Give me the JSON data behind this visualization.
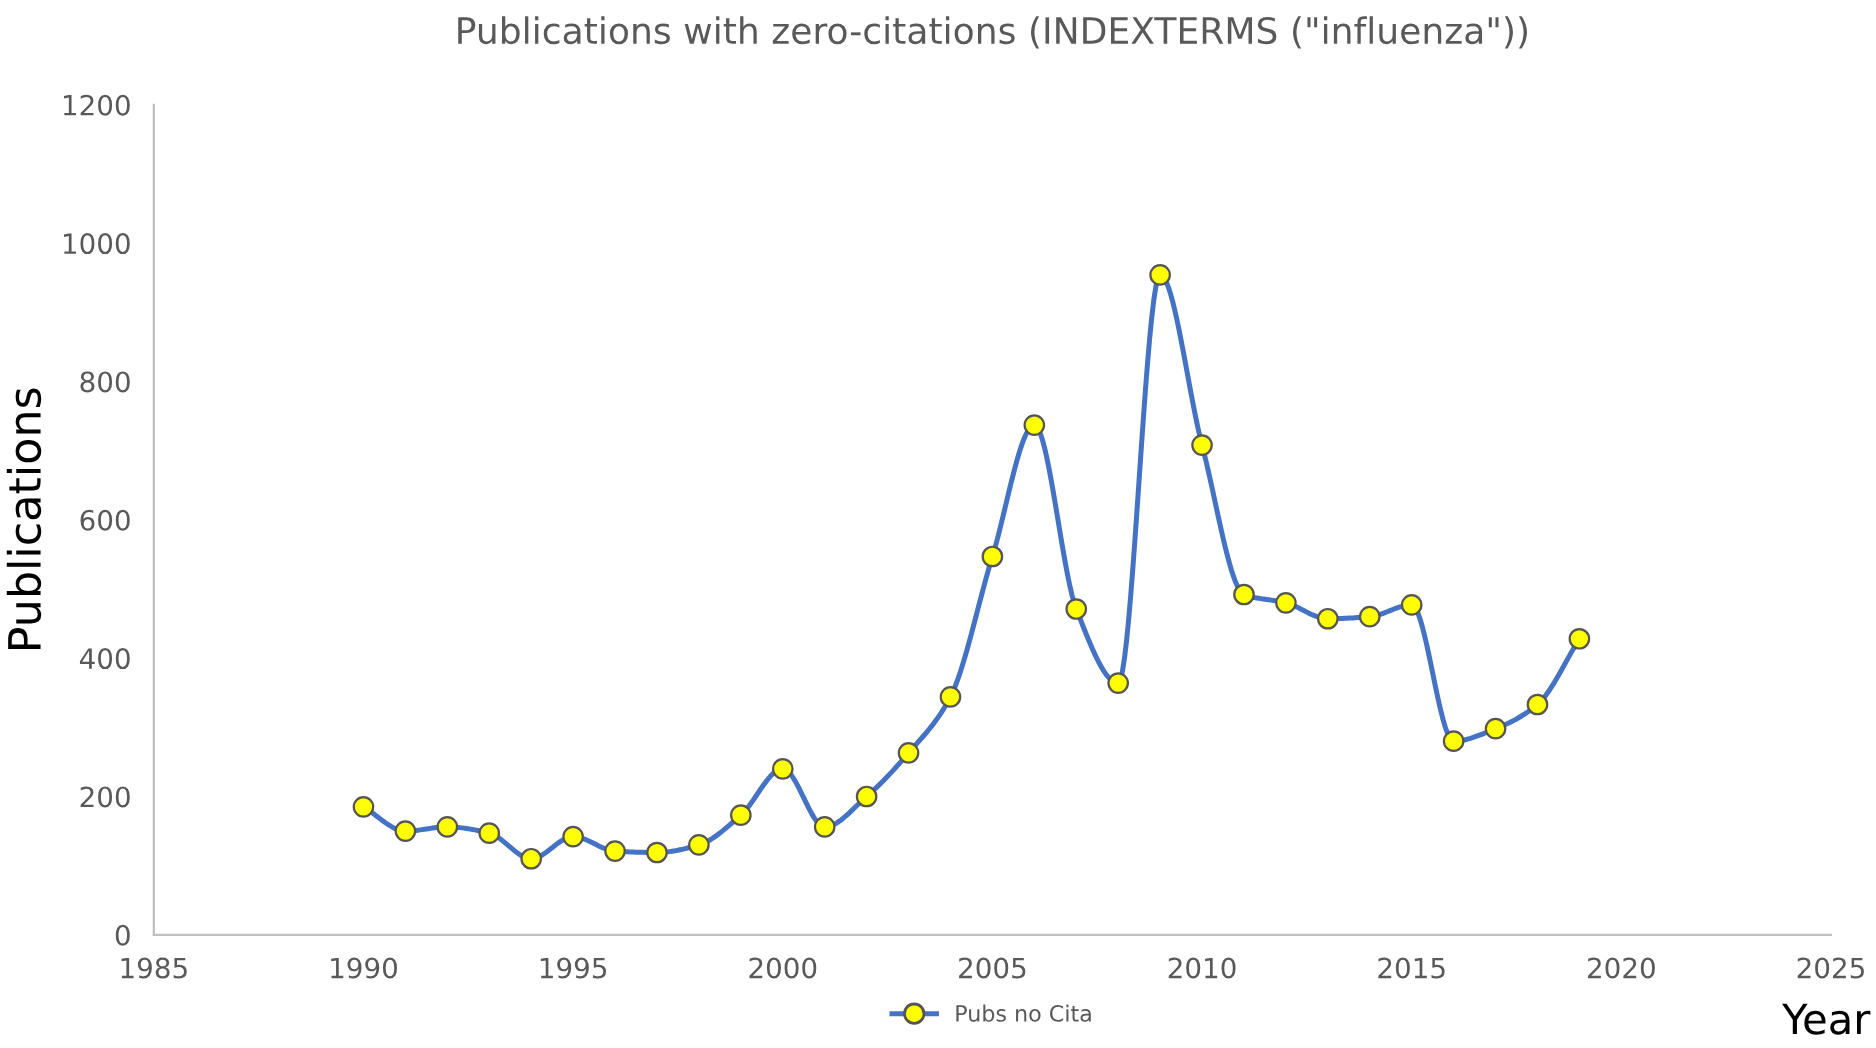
{
  "chart_data": {
    "type": "line",
    "title": "Publications with zero-citations (INDEXTERMS (\"influenza\"))",
    "xlabel": "Year",
    "ylabel": "Publications",
    "x": [
      1990,
      1991,
      1992,
      1993,
      1994,
      1995,
      1996,
      1997,
      1998,
      1999,
      2000,
      2001,
      2002,
      2003,
      2004,
      2005,
      2006,
      2007,
      2008,
      2009,
      2010,
      2011,
      2012,
      2013,
      2014,
      2015,
      2016,
      2017,
      2018,
      2019
    ],
    "series": [
      {
        "name": "Pubs no Cita",
        "color": "#4472c4",
        "values": [
          185,
          150,
          156,
          147,
          110,
          142,
          121,
          119,
          130,
          173,
          240,
          156,
          200,
          263,
          344,
          547,
          737,
          471,
          364,
          954,
          708,
          492,
          480,
          457,
          460,
          477,
          280,
          298,
          333,
          428
        ]
      }
    ],
    "xlim": [
      1985,
      2025
    ],
    "xticks": [
      1985,
      1990,
      1995,
      2000,
      2005,
      2010,
      2015,
      2020,
      2025
    ],
    "ylim": [
      0,
      1200
    ],
    "yticks": [
      0,
      200,
      400,
      600,
      800,
      1000,
      1200
    ],
    "marker": "circle",
    "line_style": "solid",
    "grid": false,
    "legend": "bottom"
  }
}
